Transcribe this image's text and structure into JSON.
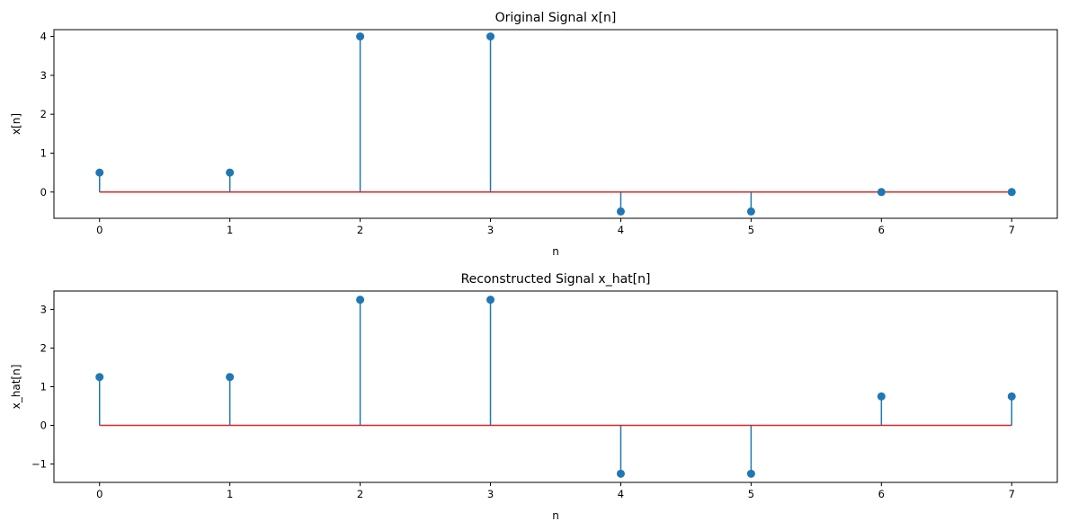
{
  "colors": {
    "stem": "#1f77b4",
    "baseline": "#d62728",
    "frame": "#000000"
  },
  "chart_data": [
    {
      "type": "stem",
      "title": "Original Signal x[n]",
      "xlabel": "n",
      "ylabel": "x[n]",
      "x": [
        0,
        1,
        2,
        3,
        4,
        5,
        6,
        7
      ],
      "y": [
        0.5,
        0.5,
        4,
        4,
        -0.5,
        -0.5,
        0,
        0
      ],
      "baseline": 0,
      "xlim": [
        -0.35,
        7.35
      ],
      "ylim": [
        -0.675,
        4.175
      ],
      "xticks": [
        0,
        1,
        2,
        3,
        4,
        5,
        6,
        7
      ],
      "xtick_labels": [
        "0",
        "1",
        "2",
        "3",
        "4",
        "5",
        "6",
        "7"
      ],
      "yticks": [
        0,
        1,
        2,
        3,
        4
      ],
      "ytick_labels": [
        "0",
        "1",
        "2",
        "3",
        "4"
      ],
      "grid": false
    },
    {
      "type": "stem",
      "title": "Reconstructed Signal x_hat[n]",
      "xlabel": "n",
      "ylabel": "x_hat[n]",
      "x": [
        0,
        1,
        2,
        3,
        4,
        5,
        6,
        7
      ],
      "y": [
        1.25,
        1.25,
        3.25,
        3.25,
        -1.25,
        -1.25,
        0.75,
        0.75
      ],
      "baseline": 0,
      "xlim": [
        -0.35,
        7.35
      ],
      "ylim": [
        -1.475,
        3.475
      ],
      "xticks": [
        0,
        1,
        2,
        3,
        4,
        5,
        6,
        7
      ],
      "xtick_labels": [
        "0",
        "1",
        "2",
        "3",
        "4",
        "5",
        "6",
        "7"
      ],
      "yticks": [
        -1,
        0,
        1,
        2,
        3
      ],
      "ytick_labels": [
        "−1",
        "0",
        "1",
        "2",
        "3"
      ],
      "grid": false
    }
  ]
}
